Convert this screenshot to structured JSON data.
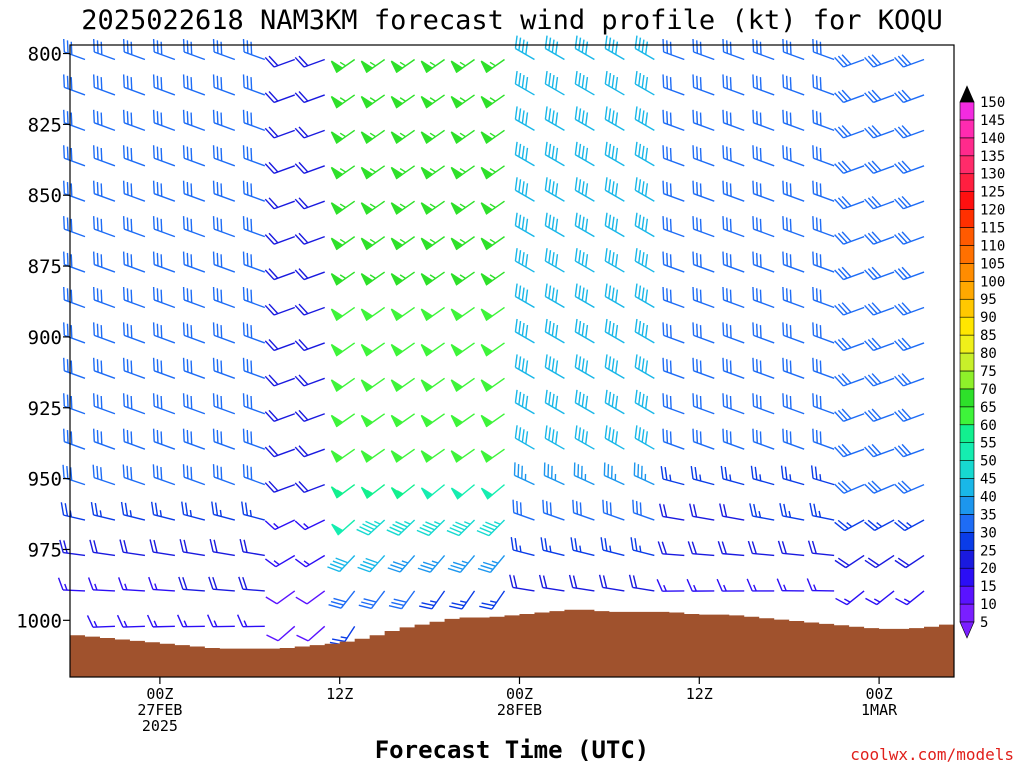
{
  "title": "2025022618 NAM3KM forecast wind profile (kt) for KOQU",
  "xlabel": "Forecast Time (UTC)",
  "credit": "coolwx.com/models",
  "colors": {
    "terrain": "#a0522d",
    "frame": "#000000",
    "credit": "#e0201b"
  },
  "chart_data": {
    "type": "wind-barb time-height profile",
    "title": "2025022618 NAM3KM forecast wind profile (kt) for KOQU",
    "xlabel": "Forecast Time (UTC)",
    "ylabel": "",
    "y_scale": "pressure (hPa), inverted",
    "ylim": [
      1020,
      797
    ],
    "y_ticks": [
      800,
      825,
      850,
      875,
      900,
      925,
      950,
      975,
      1000
    ],
    "x_ticks": [
      {
        "hour": 0,
        "lines": [
          "00Z",
          "27FEB",
          "2025"
        ]
      },
      {
        "hour": 12,
        "lines": [
          "12Z"
        ]
      },
      {
        "hour": 24,
        "lines": [
          "00Z",
          "28FEB"
        ]
      },
      {
        "hour": 36,
        "lines": [
          "12Z"
        ]
      },
      {
        "hour": 48,
        "lines": [
          "00Z",
          "1MAR"
        ]
      }
    ],
    "xlim_hours_from_27FEB_00Z": [
      -6,
      53
    ],
    "forecast_step_hours": 2,
    "colorbar": {
      "unit": "kt",
      "labels": [
        5,
        10,
        15,
        20,
        25,
        30,
        35,
        40,
        45,
        50,
        55,
        60,
        65,
        70,
        75,
        80,
        85,
        90,
        95,
        100,
        105,
        110,
        115,
        120,
        125,
        130,
        135,
        140,
        145,
        150
      ],
      "colors": [
        "#7a1fff",
        "#5a13ff",
        "#2b0ef5",
        "#1a1adf",
        "#0a3ce8",
        "#1e6cf5",
        "#1c96ee",
        "#19b7e8",
        "#17d9d0",
        "#15edb0",
        "#12f08f",
        "#3ef43a",
        "#2ee02a",
        "#8ef02a",
        "#c8f02a",
        "#f0f01a",
        "#ffe600",
        "#ffc800",
        "#ffa800",
        "#ff8c00",
        "#ff7000",
        "#ff5a00",
        "#ff3000",
        "#ff1010",
        "#ff1f40",
        "#ff2b6a",
        "#ff2a8c",
        "#ff2bb0",
        "#f32be0",
        "#000000"
      ]
    },
    "surface_pressure_hPa": {
      "time_hours": [
        -6,
        -4,
        -2,
        0,
        2,
        4,
        6,
        8,
        10,
        12,
        14,
        16,
        18,
        20,
        22,
        24,
        26,
        28,
        30,
        32,
        34,
        36,
        38,
        40,
        42,
        44,
        46,
        48,
        50,
        52,
        53
      ],
      "values": [
        1005,
        1006,
        1007,
        1008,
        1009,
        1010,
        1010,
        1010,
        1009,
        1008,
        1006,
        1003,
        1001,
        999,
        999,
        998,
        997,
        996,
        997,
        997,
        997,
        998,
        998,
        999,
        1000,
        1001,
        1002,
        1003,
        1003,
        1002,
        1001
      ]
    },
    "wind_regimes": [
      {
        "from_hour": -6,
        "to_hour": 8,
        "direction_deg": 290,
        "speed_kt": 30
      },
      {
        "from_hour": 8,
        "to_hour": 13,
        "direction_deg": 250,
        "speed_kt": 20
      },
      {
        "from_hour": 13,
        "to_hour": 24,
        "direction_deg": 235,
        "speed_kt": 55
      },
      {
        "from_hour": 24,
        "to_hour": 34,
        "direction_deg": 300,
        "speed_kt": 40
      },
      {
        "from_hour": 34,
        "to_hour": 46,
        "direction_deg": 290,
        "speed_kt": 30
      },
      {
        "from_hour": 46,
        "to_hour": 53,
        "direction_deg": 250,
        "speed_kt": 30
      }
    ]
  }
}
